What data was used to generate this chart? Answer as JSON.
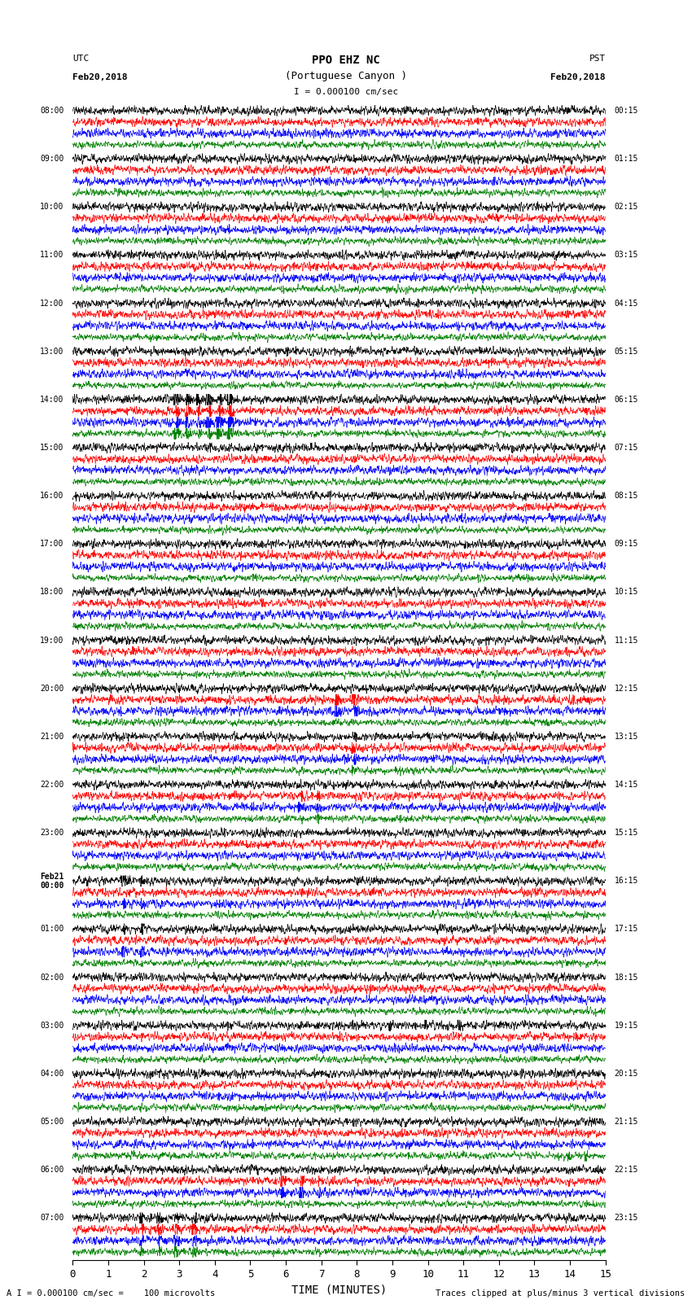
{
  "title_line1": "PPO EHZ NC",
  "title_line2": "(Portuguese Canyon )",
  "scale_label": "I = 0.000100 cm/sec",
  "xlabel": "TIME (MINUTES)",
  "footer_left": "A I = 0.000100 cm/sec =    100 microvolts",
  "footer_right": "Traces clipped at plus/minus 3 vertical divisions",
  "xlim": [
    0,
    15
  ],
  "xticks": [
    0,
    1,
    2,
    3,
    4,
    5,
    6,
    7,
    8,
    9,
    10,
    11,
    12,
    13,
    14,
    15
  ],
  "trace_colors": [
    "black",
    "red",
    "blue",
    "green"
  ],
  "num_hours": 24,
  "background_color": "white",
  "figsize": [
    8.5,
    16.13
  ],
  "dpi": 100,
  "utc_labels": [
    "08:00",
    "09:00",
    "10:00",
    "11:00",
    "12:00",
    "13:00",
    "14:00",
    "15:00",
    "16:00",
    "17:00",
    "18:00",
    "19:00",
    "20:00",
    "21:00",
    "22:00",
    "23:00",
    "Feb21\n00:00",
    "01:00",
    "02:00",
    "03:00",
    "04:00",
    "05:00",
    "06:00",
    "07:00"
  ],
  "pst_labels": [
    "00:15",
    "01:15",
    "02:15",
    "03:15",
    "04:15",
    "05:15",
    "06:15",
    "07:15",
    "08:15",
    "09:15",
    "10:15",
    "11:15",
    "12:15",
    "13:15",
    "14:15",
    "15:15",
    "16:15",
    "17:15",
    "18:15",
    "19:15",
    "20:15",
    "21:15",
    "22:15",
    "23:15"
  ],
  "event_hours": {
    "6": {
      "colors": [
        0,
        1,
        2,
        3
      ],
      "positions": [
        3.0,
        3.3,
        3.6,
        3.9,
        4.2,
        4.5
      ],
      "amplitude": 3.5
    },
    "12": {
      "colors": [
        1,
        2
      ],
      "positions": [
        7.5,
        8.0
      ],
      "amplitude": 4.0
    },
    "13": {
      "colors": [
        0,
        1,
        2,
        3
      ],
      "positions": [
        8.0
      ],
      "amplitude": 1.5
    },
    "14": {
      "colors": [
        1,
        2,
        3
      ],
      "positions": [
        6.5,
        7.0
      ],
      "amplitude": 1.5
    },
    "16": {
      "colors": [
        0,
        2
      ],
      "positions": [
        1.5,
        2.0
      ],
      "amplitude": 2.0
    },
    "17": {
      "colors": [
        0,
        2
      ],
      "positions": [
        1.5,
        2.0
      ],
      "amplitude": 2.5
    },
    "19": {
      "colors": [
        0
      ],
      "positions": [
        7.5,
        8.0,
        9.0,
        10.0,
        11.0
      ],
      "amplitude": 1.5
    },
    "21": {
      "colors": [
        3
      ],
      "positions": [
        14.0,
        14.5
      ],
      "amplitude": 2.0
    },
    "22": {
      "colors": [
        1,
        2
      ],
      "positions": [
        6.0,
        6.5,
        7.0
      ],
      "amplitude": 2.0
    },
    "23": {
      "colors": [
        0,
        1,
        2,
        3
      ],
      "positions": [
        2.0,
        2.5,
        3.0,
        3.5
      ],
      "amplitude": 2.5
    }
  }
}
